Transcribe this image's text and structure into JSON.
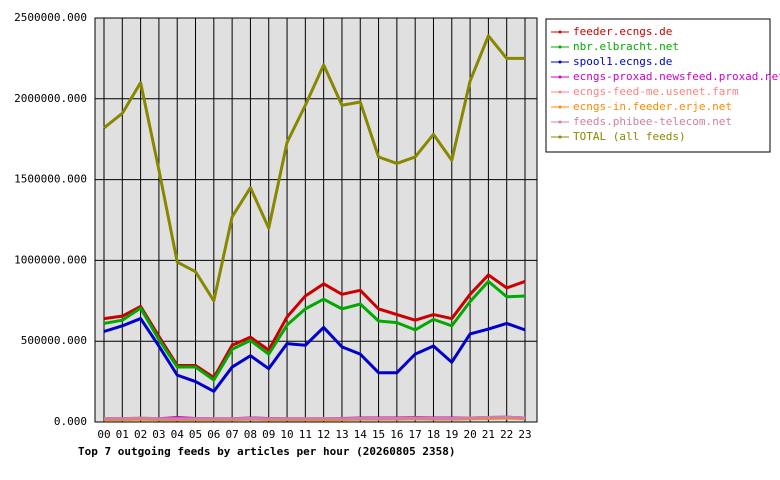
{
  "chart_data": {
    "type": "line",
    "title": "Top 7 outgoing feeds by articles per hour (20260805 2358)",
    "categories": [
      "00",
      "01",
      "02",
      "03",
      "04",
      "05",
      "06",
      "07",
      "08",
      "09",
      "10",
      "11",
      "12",
      "13",
      "14",
      "15",
      "16",
      "17",
      "18",
      "19",
      "20",
      "21",
      "22",
      "23"
    ],
    "ylim": [
      0,
      2500000
    ],
    "yticks": [
      {
        "value": 0,
        "label": "0.000"
      },
      {
        "value": 500000,
        "label": "500000.000"
      },
      {
        "value": 1000000,
        "label": "1000000.000"
      },
      {
        "value": 1500000,
        "label": "1500000.000"
      },
      {
        "value": 2000000,
        "label": "2000000.000"
      },
      {
        "value": 2500000,
        "label": "2500000.000"
      }
    ],
    "grid": true,
    "legend": "right",
    "series": [
      {
        "name": "feeder.ecngs.de",
        "color": "#cc0000",
        "values": [
          640000,
          655000,
          715000,
          530000,
          350000,
          350000,
          275000,
          475000,
          525000,
          445000,
          650000,
          780000,
          855000,
          790000,
          815000,
          700000,
          665000,
          630000,
          665000,
          640000,
          790000,
          910000,
          830000,
          870000
        ]
      },
      {
        "name": "nbr.elbracht.net",
        "color": "#00aa00",
        "values": [
          610000,
          630000,
          705000,
          510000,
          340000,
          340000,
          260000,
          450000,
          505000,
          420000,
          600000,
          700000,
          760000,
          700000,
          730000,
          625000,
          615000,
          570000,
          635000,
          595000,
          745000,
          870000,
          775000,
          780000
        ]
      },
      {
        "name": "spool1.ecngs.de",
        "color": "#0000cc",
        "values": [
          560000,
          595000,
          640000,
          470000,
          290000,
          250000,
          190000,
          340000,
          410000,
          330000,
          485000,
          475000,
          585000,
          465000,
          420000,
          305000,
          305000,
          420000,
          470000,
          370000,
          545000,
          575000,
          610000,
          570000
        ]
      },
      {
        "name": "ecngs-proxad.newsfeed.proxad.net",
        "color": "#cc00cc",
        "values": [
          20000,
          20000,
          22000,
          20000,
          28000,
          22000,
          20000,
          20000,
          25000,
          22000,
          20000,
          20000,
          20000,
          22000,
          25000,
          25000,
          25000,
          28000,
          25000,
          25000,
          25000,
          28000,
          30000,
          25000
        ]
      },
      {
        "name": "ecngs-feed-me.usenet.farm",
        "color": "#ff8080",
        "values": [
          18000,
          18000,
          20000,
          18000,
          18000,
          18000,
          18000,
          18000,
          20000,
          18000,
          18000,
          18000,
          18000,
          18000,
          20000,
          20000,
          20000,
          22000,
          20000,
          20000,
          22000,
          25000,
          28000,
          22000
        ]
      },
      {
        "name": "ecngs-in.feeder.erje.net",
        "color": "#ff8800",
        "values": [
          15000,
          15000,
          18000,
          15000,
          15000,
          15000,
          15000,
          15000,
          18000,
          15000,
          15000,
          15000,
          15000,
          15000,
          18000,
          18000,
          18000,
          20000,
          18000,
          18000,
          20000,
          22000,
          25000,
          20000
        ]
      },
      {
        "name": "feeds.phibee-telecom.net",
        "color": "#d080a0",
        "values": [
          22000,
          20000,
          25000,
          20000,
          20000,
          20000,
          20000,
          20000,
          22000,
          20000,
          20000,
          20000,
          22000,
          20000,
          22000,
          22000,
          22000,
          25000,
          22000,
          22000,
          25000,
          28000,
          30000,
          25000
        ]
      },
      {
        "name": "TOTAL (all feeds)",
        "color": "#888800",
        "values": [
          1820000,
          1910000,
          2100000,
          1560000,
          990000,
          930000,
          750000,
          1270000,
          1450000,
          1200000,
          1730000,
          1960000,
          2210000,
          1960000,
          1980000,
          1640000,
          1600000,
          1640000,
          1780000,
          1620000,
          2110000,
          2390000,
          2250000,
          2250000
        ]
      }
    ]
  }
}
